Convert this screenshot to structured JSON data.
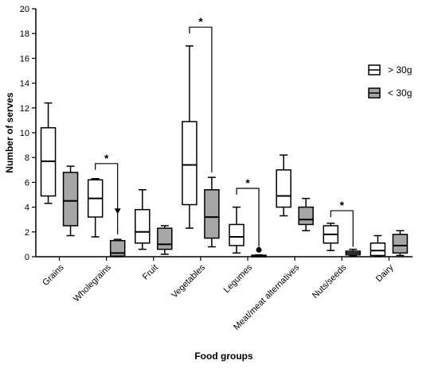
{
  "chart_data": {
    "type": "boxplot",
    "xlabel": "Food groups",
    "ylabel": "Number of serves",
    "ylim": [
      0,
      20
    ],
    "y_ticks": [
      0,
      2,
      4,
      6,
      8,
      10,
      12,
      14,
      16,
      18,
      20
    ],
    "categories": [
      "Grains",
      "Wholegrains",
      "Fruit",
      "Vegetables",
      "Legumes",
      "Meat/meat alternatives",
      "Nuts/seeds",
      "Dairy"
    ],
    "legend": {
      "position": "top-right"
    },
    "series": [
      {
        "name": "> 30g",
        "color": "#ffffff",
        "boxes": [
          {
            "min": 4.3,
            "q1": 4.9,
            "median": 7.7,
            "q3": 10.4,
            "max": 12.4
          },
          {
            "min": 1.6,
            "q1": 3.2,
            "median": 4.7,
            "q3": 6.2,
            "max": 6.3
          },
          {
            "min": 0.6,
            "q1": 1.1,
            "median": 2.0,
            "q3": 3.8,
            "max": 5.4
          },
          {
            "min": 2.3,
            "q1": 4.2,
            "median": 7.4,
            "q3": 10.9,
            "max": 17.0
          },
          {
            "min": 0.3,
            "q1": 0.9,
            "median": 1.6,
            "q3": 2.6,
            "max": 4.0
          },
          {
            "min": 3.3,
            "q1": 4.0,
            "median": 4.9,
            "q3": 7.0,
            "max": 8.2
          },
          {
            "min": 0.5,
            "q1": 1.1,
            "median": 1.8,
            "q3": 2.5,
            "max": 2.7
          },
          {
            "min": 0.05,
            "q1": 0.1,
            "median": 0.5,
            "q3": 1.1,
            "max": 1.7
          }
        ]
      },
      {
        "name": "< 30g",
        "color": "#a6a6a6",
        "boxes": [
          {
            "min": 1.7,
            "q1": 2.5,
            "median": 4.5,
            "q3": 6.8,
            "max": 7.3
          },
          {
            "min": 0.0,
            "q1": 0.05,
            "median": 0.3,
            "q3": 1.3,
            "max": 1.4
          },
          {
            "min": 0.2,
            "q1": 0.6,
            "median": 1.0,
            "q3": 2.3,
            "max": 2.5
          },
          {
            "min": 0.8,
            "q1": 1.5,
            "median": 3.2,
            "q3": 5.4,
            "max": 6.4
          },
          {
            "min": 0.0,
            "q1": 0.0,
            "median": 0.05,
            "q3": 0.12,
            "max": 0.15
          },
          {
            "min": 2.1,
            "q1": 2.6,
            "median": 3.0,
            "q3": 4.0,
            "max": 4.7
          },
          {
            "min": 0.05,
            "q1": 0.15,
            "median": 0.3,
            "q3": 0.45,
            "max": 0.6
          },
          {
            "min": 0.1,
            "q1": 0.3,
            "median": 0.9,
            "q3": 1.8,
            "max": 2.1
          }
        ]
      }
    ],
    "outliers": [
      {
        "series": 1,
        "category": 1,
        "value": 3.7,
        "marker": "triangle-down"
      },
      {
        "series": 1,
        "category": 4,
        "value": 0.55,
        "marker": "circle"
      }
    ],
    "significance": [
      {
        "category": 1,
        "left_value": 7.0,
        "right_value": 1.8,
        "label": "*"
      },
      {
        "category": 3,
        "left_value": 18.0,
        "right_value": 6.8,
        "label": "*"
      },
      {
        "category": 4,
        "left_value": 5.0,
        "right_value": 0.8,
        "label": "*"
      },
      {
        "category": 6,
        "left_value": 3.2,
        "right_value": 0.8,
        "label": "*"
      }
    ]
  }
}
